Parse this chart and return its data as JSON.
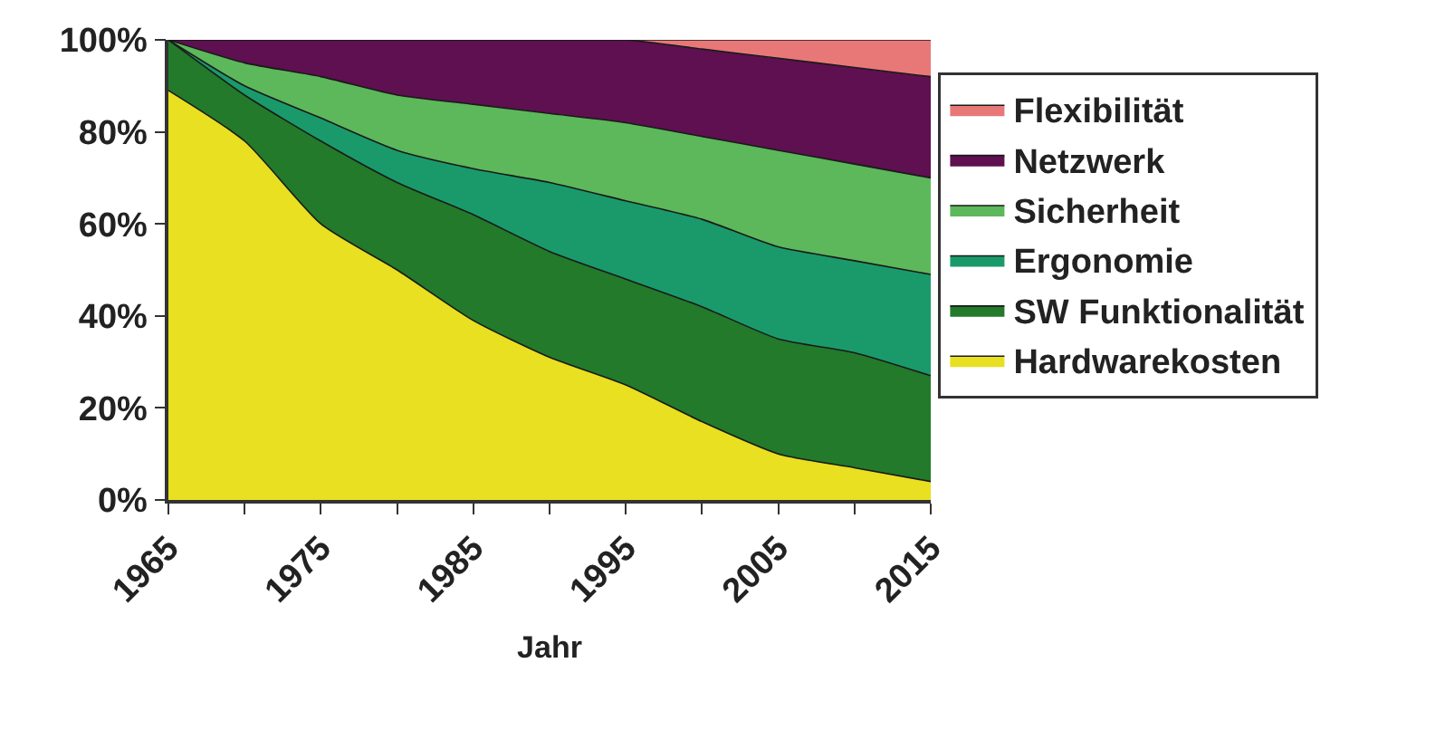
{
  "chart_data": {
    "type": "area",
    "stacked": true,
    "xlabel": "Jahr",
    "x": [
      1965,
      1970,
      1975,
      1980,
      1985,
      1990,
      1995,
      2000,
      2005,
      2010,
      2015
    ],
    "series": [
      {
        "name": "Hardwarekosten",
        "color": "#e8e020",
        "values": [
          89,
          78,
          60,
          50,
          39,
          31,
          25,
          17,
          10,
          7,
          4
        ]
      },
      {
        "name": "SW Funktionalität",
        "color": "#227a2a",
        "values": [
          11,
          10,
          18,
          19,
          23,
          23,
          23,
          25,
          25,
          25,
          23
        ]
      },
      {
        "name": "Ergonomie",
        "color": "#1a9a6a",
        "values": [
          0,
          2,
          5,
          7,
          10,
          15,
          17,
          19,
          20,
          20,
          22
        ]
      },
      {
        "name": "Sicherheit",
        "color": "#5cb85a",
        "values": [
          0,
          5,
          9,
          12,
          14,
          15,
          17,
          18,
          21,
          21,
          21
        ]
      },
      {
        "name": "Netzwerk",
        "color": "#5e1050",
        "values": [
          0,
          5,
          8,
          12,
          14,
          16,
          18,
          19,
          20,
          21,
          22
        ]
      },
      {
        "name": "Flexibilität",
        "color": "#e87878",
        "values": [
          0,
          0,
          0,
          0,
          0,
          0,
          0,
          2,
          4,
          6,
          8
        ]
      }
    ],
    "xlim": [
      1965,
      2015
    ],
    "xticks": [
      1965,
      {
        "value": 1970,
        "label": null
      },
      1975,
      {
        "value": 1980,
        "label": null
      },
      1985,
      {
        "value": 1990,
        "label": null
      },
      1995,
      {
        "value": 2000,
        "label": null
      },
      2005,
      {
        "value": 2010,
        "label": null
      },
      2015
    ],
    "ylim": [
      0,
      100
    ],
    "yticks": [
      {
        "value": 0,
        "label": "0%"
      },
      {
        "value": 20,
        "label": "20%"
      },
      {
        "value": 40,
        "label": "40%"
      },
      {
        "value": 60,
        "label": "60%"
      },
      {
        "value": 80,
        "label": "80%"
      },
      {
        "value": 100,
        "label": "100%"
      }
    ],
    "legend": "right",
    "marker": "none"
  }
}
